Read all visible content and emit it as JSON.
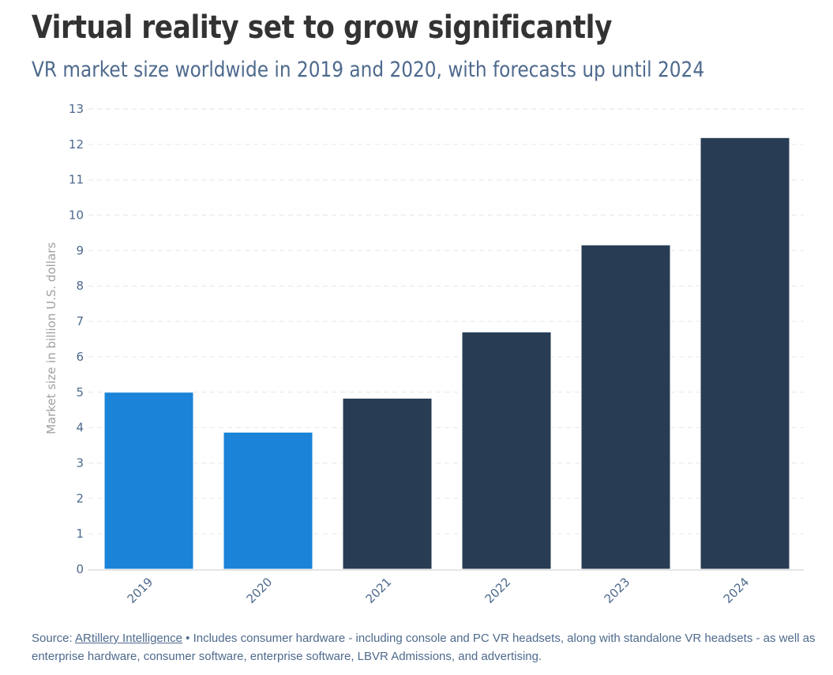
{
  "header": {
    "title": "Virtual reality set to grow significantly",
    "subtitle": "VR market size worldwide in 2019 and 2020, with forecasts up until 2024"
  },
  "footer": {
    "source_label": "Source:",
    "source_link": "ARtillery Intelligence",
    "separator": "•",
    "note": "Includes consumer hardware - including console and PC VR headsets, along with standalone VR headsets - as well as enterprise hardware, consumer software, enterprise software, LBVR Admissions, and advertising."
  },
  "colors": {
    "actual": "#1b84d8",
    "forecast": "#283d54",
    "tick_text": "#4e6a8d",
    "axis_label": "#a0a0a0",
    "grid": "#e6e6e6"
  },
  "chart_data": {
    "type": "bar",
    "title": "Virtual reality set to grow significantly",
    "subtitle": "VR market size worldwide in 2019 and 2020, with forecasts up until 2024",
    "xlabel": "",
    "ylabel": "Market size in billion U.S. dollars",
    "categories": [
      "2019",
      "2020",
      "2021",
      "2022",
      "2023",
      "2024"
    ],
    "values": [
      5.0,
      3.87,
      4.83,
      6.7,
      9.16,
      12.19
    ],
    "bar_status": [
      "actual",
      "actual",
      "forecast",
      "forecast",
      "forecast",
      "forecast"
    ],
    "ylim": [
      0,
      13
    ],
    "yticks": [
      0,
      1,
      2,
      3,
      4,
      5,
      6,
      7,
      8,
      9,
      10,
      11,
      12,
      13
    ],
    "grid": true,
    "legend": "none"
  }
}
